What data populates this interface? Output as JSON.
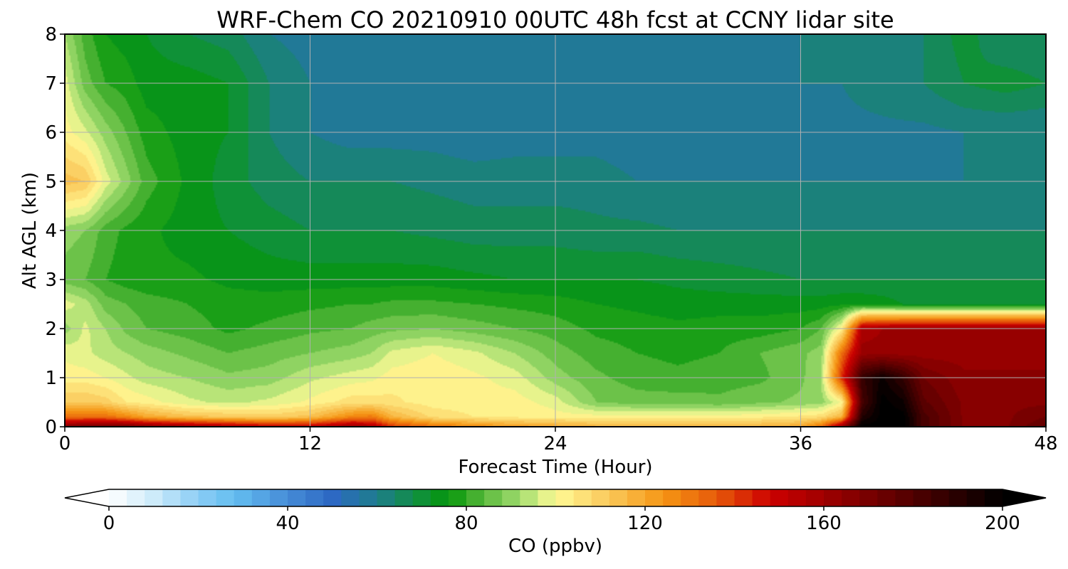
{
  "chart_data": {
    "type": "heatmap",
    "title": "WRF-Chem CO  20210910 00UTC 48h fcst at CCNY lidar site",
    "xlabel": "Forecast Time (Hour)",
    "ylabel": "Alt AGL (km)",
    "xlim": [
      0,
      48
    ],
    "ylim": [
      0,
      8
    ],
    "xticks": [
      "0",
      "12",
      "24",
      "36",
      "48"
    ],
    "yticks": [
      "0",
      "1",
      "2",
      "3",
      "4",
      "5",
      "6",
      "7",
      "8"
    ],
    "grid": true,
    "colorbar": {
      "label": "CO  (ppbv)",
      "range": [
        0,
        200
      ],
      "extend": "both",
      "ticks": [
        "0",
        "40",
        "80",
        "120",
        "160",
        "200"
      ]
    },
    "x": [
      0,
      1,
      2,
      3,
      4,
      6,
      8,
      10,
      12,
      14,
      15,
      16,
      18,
      20,
      22,
      24,
      26,
      28,
      30,
      32,
      34,
      36,
      37,
      38,
      39,
      40,
      41,
      42,
      44,
      46,
      48
    ],
    "y": [
      0,
      0.2,
      0.5,
      1.0,
      1.5,
      2.0,
      2.5,
      3.0,
      4.0,
      5.0,
      6.0,
      7.0,
      8.0
    ],
    "z": [
      [
        165,
        170,
        170,
        170,
        165,
        160,
        155,
        150,
        150,
        160,
        155,
        140,
        130,
        125,
        120,
        118,
        115,
        113,
        113,
        113,
        115,
        118,
        130,
        160,
        200,
        200,
        200,
        180,
        165,
        165,
        175
      ],
      [
        130,
        130,
        130,
        125,
        118,
        112,
        110,
        108,
        112,
        125,
        128,
        115,
        105,
        102,
        101,
        100,
        100,
        100,
        100,
        100,
        101,
        103,
        105,
        115,
        190,
        200,
        200,
        180,
        165,
        165,
        170
      ],
      [
        110,
        110,
        108,
        102,
        100,
        95,
        93,
        95,
        99,
        104,
        104,
        103,
        100,
        100,
        100,
        96,
        86,
        84,
        84,
        83,
        85,
        87,
        88,
        98,
        180,
        200,
        195,
        175,
        165,
        165,
        165
      ],
      [
        100,
        100,
        98,
        95,
        92,
        90,
        87,
        88,
        93,
        96,
        97,
        100,
        101,
        99,
        96,
        88,
        83,
        80,
        79,
        80,
        81,
        85,
        90,
        140,
        185,
        195,
        185,
        170,
        163,
        163,
        163
      ],
      [
        97,
        95,
        92,
        90,
        88,
        85,
        82,
        84,
        86,
        88,
        90,
        95,
        98,
        95,
        90,
        84,
        80,
        78,
        77,
        78,
        82,
        85,
        88,
        130,
        160,
        160,
        160,
        160,
        160,
        160,
        160
      ],
      [
        88,
        95,
        90,
        85,
        82,
        80,
        77,
        79,
        81,
        82,
        84,
        85,
        86,
        84,
        82,
        80,
        77,
        76,
        75,
        76,
        76,
        78,
        82,
        100,
        155,
        158,
        160,
        160,
        160,
        160,
        160
      ],
      [
        96,
        92,
        84,
        82,
        80,
        78,
        76,
        76,
        77,
        78,
        78,
        79,
        79,
        78,
        77,
        76,
        74,
        73,
        72,
        72,
        72,
        72,
        72,
        73,
        73,
        72,
        70,
        70,
        70,
        70,
        70
      ],
      [
        84,
        82,
        78,
        76,
        75,
        75,
        73,
        72,
        72,
        72,
        72,
        72,
        72,
        71,
        70,
        70,
        70,
        70,
        69,
        68,
        67,
        66,
        66,
        66,
        66,
        66,
        66,
        66,
        66,
        66,
        66
      ],
      [
        88,
        86,
        80,
        77,
        75,
        72,
        70,
        68,
        66,
        66,
        66,
        66,
        65,
        64,
        64,
        64,
        63,
        63,
        62,
        62,
        62,
        62,
        62,
        62,
        62,
        62,
        62,
        62,
        62,
        62,
        62
      ],
      [
        112,
        110,
        96,
        88,
        80,
        73,
        68,
        64,
        62,
        62,
        62,
        62,
        61,
        60,
        60,
        60,
        60,
        58,
        58,
        58,
        58,
        58,
        58,
        58,
        58,
        58,
        58,
        58,
        58,
        58,
        58
      ],
      [
        100,
        95,
        88,
        82,
        76,
        72,
        70,
        62,
        58,
        56,
        56,
        56,
        56,
        55,
        56,
        56,
        56,
        55,
        55,
        56,
        56,
        56,
        57,
        57,
        57,
        57,
        57,
        57,
        58,
        58,
        58
      ],
      [
        96,
        84,
        78,
        76,
        72,
        72,
        70,
        62,
        58,
        56,
        56,
        56,
        56,
        56,
        56,
        56,
        56,
        56,
        56,
        56,
        57,
        58,
        58,
        58,
        59,
        60,
        61,
        62,
        66,
        68,
        66
      ],
      [
        90,
        80,
        74,
        72,
        70,
        66,
        64,
        58,
        56,
        56,
        56,
        56,
        56,
        56,
        56,
        56,
        56,
        56,
        56,
        56,
        56,
        58,
        58,
        58,
        58,
        60,
        62,
        62,
        68,
        62,
        62
      ]
    ]
  }
}
